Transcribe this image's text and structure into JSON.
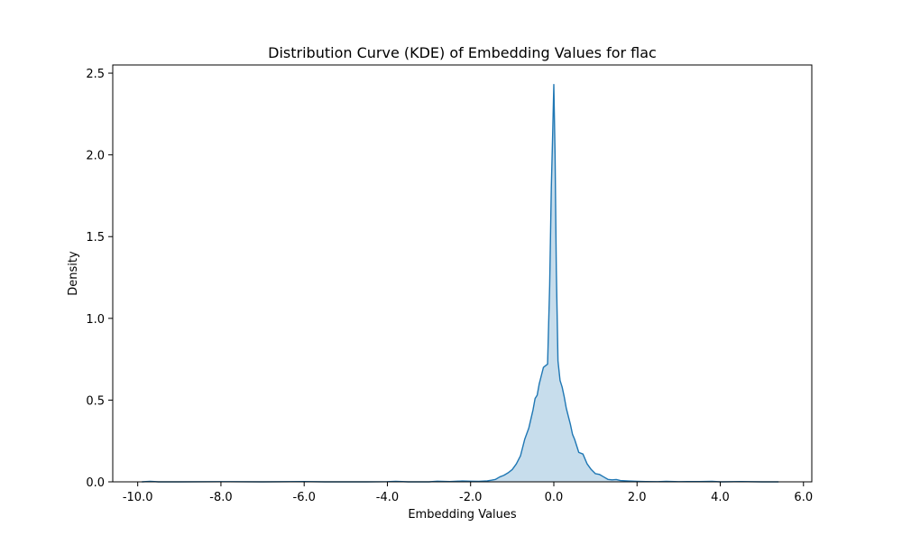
{
  "colors": {
    "line": "#1f77b4",
    "fill": "#1f77b4",
    "axes": "#000000",
    "background": "#ffffff"
  },
  "chart_data": {
    "type": "area",
    "title": "Distribution Curve (KDE) of Embedding Values for flac",
    "xlabel": "Embedding Values",
    "ylabel": "Density",
    "xlim": [
      -10.6,
      6.2
    ],
    "ylim": [
      0,
      2.55
    ],
    "grid": false,
    "legend": "none",
    "x_ticks": [
      -10.0,
      -8.0,
      -6.0,
      -4.0,
      -2.0,
      0.0,
      2.0,
      4.0,
      6.0
    ],
    "x_tick_labels": [
      "-10.0",
      "-8.0",
      "-6.0",
      "-4.0",
      "-2.0",
      "0.0",
      "2.0",
      "4.0",
      "6.0"
    ],
    "y_ticks": [
      0.0,
      0.5,
      1.0,
      1.5,
      2.0,
      2.5
    ],
    "y_tick_labels": [
      "0.0",
      "0.5",
      "1.0",
      "1.5",
      "2.0",
      "2.5"
    ],
    "series": [
      {
        "x": [
          -9.9,
          -9.7,
          -9.5,
          -9.0,
          -8.0,
          -7.0,
          -6.0,
          -5.5,
          -5.0,
          -4.5,
          -4.0,
          -3.8,
          -3.5,
          -3.0,
          -2.8,
          -2.5,
          -2.2,
          -2.0,
          -1.8,
          -1.6,
          -1.5,
          -1.4,
          -1.3,
          -1.2,
          -1.1,
          -1.0,
          -0.9,
          -0.8,
          -0.7,
          -0.6,
          -0.5,
          -0.45,
          -0.4,
          -0.35,
          -0.3,
          -0.25,
          -0.2,
          -0.15,
          -0.1,
          -0.06,
          -0.03,
          0.0,
          0.03,
          0.06,
          0.1,
          0.15,
          0.2,
          0.25,
          0.3,
          0.35,
          0.4,
          0.45,
          0.5,
          0.6,
          0.7,
          0.8,
          0.9,
          1.0,
          1.1,
          1.2,
          1.3,
          1.4,
          1.5,
          1.6,
          1.8,
          2.0,
          2.2,
          2.5,
          2.7,
          3.0,
          3.5,
          3.8,
          4.0,
          4.5,
          5.0,
          5.4
        ],
        "y": [
          0.0,
          0.003,
          0.0,
          0.0,
          0.001,
          0.0,
          0.002,
          0.0,
          0.0,
          0.0,
          0.001,
          0.003,
          0.0,
          0.0,
          0.004,
          0.002,
          0.005,
          0.004,
          0.003,
          0.006,
          0.01,
          0.015,
          0.03,
          0.04,
          0.055,
          0.075,
          0.11,
          0.16,
          0.26,
          0.33,
          0.44,
          0.51,
          0.53,
          0.6,
          0.65,
          0.7,
          0.71,
          0.72,
          1.2,
          1.8,
          2.1,
          2.43,
          2.0,
          1.3,
          0.74,
          0.62,
          0.58,
          0.52,
          0.45,
          0.4,
          0.35,
          0.29,
          0.26,
          0.18,
          0.17,
          0.11,
          0.075,
          0.05,
          0.045,
          0.03,
          0.015,
          0.012,
          0.014,
          0.008,
          0.005,
          0.003,
          0.002,
          0.001,
          0.003,
          0.001,
          0.002,
          0.003,
          0.0,
          0.002,
          0.0,
          0.0
        ]
      }
    ]
  }
}
